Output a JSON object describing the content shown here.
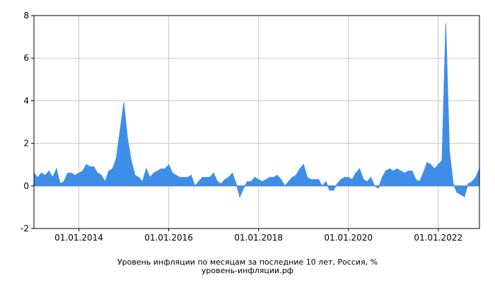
{
  "chart_data": {
    "type": "area",
    "title": "Уровень инфляции по месяцам за последние 10 лет, Россия, %",
    "subtitle": "уровень-инфляции.рф",
    "xlabel": "",
    "ylabel": "",
    "x_ticks": [
      "01.01.2014",
      "01.01.2016",
      "01.01.2018",
      "01.01.2020",
      "01.01.2022"
    ],
    "y_ticks": [
      "-2",
      "0",
      "2",
      "4",
      "6",
      "8"
    ],
    "ylim": [
      -2,
      8
    ],
    "xlim": [
      "2013-01",
      "2022-12"
    ],
    "grid": true,
    "legend": "none",
    "colors": {
      "fill": "#3e8ee8",
      "grid": "#c8c8c8",
      "axis": "#000000"
    },
    "series": [
      {
        "x": [
          "2013-01",
          "2013-02",
          "2013-03",
          "2013-04",
          "2013-05",
          "2013-06",
          "2013-07",
          "2013-08",
          "2013-09",
          "2013-10",
          "2013-11",
          "2013-12",
          "2014-01",
          "2014-02",
          "2014-03",
          "2014-04",
          "2014-05",
          "2014-06",
          "2014-07",
          "2014-08",
          "2014-09",
          "2014-10",
          "2014-11",
          "2014-12",
          "2015-01",
          "2015-02",
          "2015-03",
          "2015-04",
          "2015-05",
          "2015-06",
          "2015-07",
          "2015-08",
          "2015-09",
          "2015-10",
          "2015-11",
          "2015-12",
          "2016-01",
          "2016-02",
          "2016-03",
          "2016-04",
          "2016-05",
          "2016-06",
          "2016-07",
          "2016-08",
          "2016-09",
          "2016-10",
          "2016-11",
          "2016-12",
          "2017-01",
          "2017-02",
          "2017-03",
          "2017-04",
          "2017-05",
          "2017-06",
          "2017-07",
          "2017-08",
          "2017-09",
          "2017-10",
          "2017-11",
          "2017-12",
          "2018-01",
          "2018-02",
          "2018-03",
          "2018-04",
          "2018-05",
          "2018-06",
          "2018-07",
          "2018-08",
          "2018-09",
          "2018-10",
          "2018-11",
          "2018-12",
          "2019-01",
          "2019-02",
          "2019-03",
          "2019-04",
          "2019-05",
          "2019-06",
          "2019-07",
          "2019-08",
          "2019-09",
          "2019-10",
          "2019-11",
          "2019-12",
          "2020-01",
          "2020-02",
          "2020-03",
          "2020-04",
          "2020-05",
          "2020-06",
          "2020-07",
          "2020-08",
          "2020-09",
          "2020-10",
          "2020-11",
          "2020-12",
          "2021-01",
          "2021-02",
          "2021-03",
          "2021-04",
          "2021-05",
          "2021-06",
          "2021-07",
          "2021-08",
          "2021-09",
          "2021-10",
          "2021-11",
          "2021-12",
          "2022-01",
          "2022-02",
          "2022-03",
          "2022-04",
          "2022-05",
          "2022-06",
          "2022-07",
          "2022-08",
          "2022-09",
          "2022-10",
          "2022-11",
          "2022-12"
        ],
        "values": [
          0.6,
          0.4,
          0.6,
          0.5,
          0.7,
          0.4,
          0.8,
          0.1,
          0.2,
          0.6,
          0.6,
          0.5,
          0.6,
          0.7,
          1.0,
          0.9,
          0.9,
          0.6,
          0.5,
          0.2,
          0.7,
          0.8,
          1.3,
          2.6,
          3.9,
          2.2,
          1.2,
          0.5,
          0.4,
          0.2,
          0.8,
          0.4,
          0.6,
          0.7,
          0.8,
          0.8,
          1.0,
          0.6,
          0.5,
          0.4,
          0.4,
          0.4,
          0.5,
          0.0,
          0.2,
          0.4,
          0.4,
          0.4,
          0.6,
          0.2,
          0.1,
          0.3,
          0.4,
          0.6,
          0.1,
          -0.5,
          -0.1,
          0.2,
          0.2,
          0.4,
          0.3,
          0.2,
          0.3,
          0.4,
          0.4,
          0.5,
          0.3,
          0.0,
          0.2,
          0.4,
          0.5,
          0.8,
          1.0,
          0.4,
          0.3,
          0.3,
          0.3,
          0.0,
          0.2,
          -0.2,
          -0.2,
          0.1,
          0.3,
          0.4,
          0.4,
          0.3,
          0.6,
          0.8,
          0.3,
          0.2,
          0.4,
          0.0,
          -0.1,
          0.4,
          0.7,
          0.8,
          0.7,
          0.8,
          0.7,
          0.6,
          0.7,
          0.7,
          0.3,
          0.2,
          0.6,
          1.1,
          1.0,
          0.8,
          1.0,
          1.2,
          7.6,
          1.6,
          0.1,
          -0.3,
          -0.4,
          -0.5,
          0.1,
          0.2,
          0.4,
          0.8
        ]
      }
    ]
  }
}
